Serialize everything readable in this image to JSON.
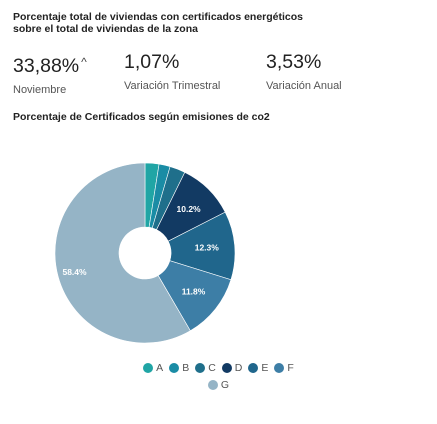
{
  "header": {
    "title": "Porcentaje total de viviendas con certificados energéticos sobre el total de viviendas de la zona"
  },
  "kpis": [
    {
      "value": "33,88%",
      "arrow": "^",
      "label": "Noviembre"
    },
    {
      "value": "1,07%",
      "label": "Variación Trimestral"
    },
    {
      "value": "3,53%",
      "label": "Variación Anual"
    }
  ],
  "chart_data": {
    "type": "pie",
    "title": "Porcentaje de Certificados según emisiones de co2",
    "labels": [
      "A",
      "B",
      "C",
      "D",
      "E",
      "F",
      "G"
    ],
    "values": [
      2.5,
      2.0,
      2.8,
      10.2,
      12.3,
      11.8,
      58.4
    ],
    "data_labels": [
      "",
      "",
      "",
      "10.2%",
      "12.3%",
      "11.8%",
      "58.4%"
    ],
    "colors": [
      "#20a5a5",
      "#1a8ca5",
      "#1f6f8b",
      "#123a63",
      "#20668c",
      "#3d7ea6",
      "#95b4c6"
    ],
    "legend": "bottom",
    "donut": true
  }
}
